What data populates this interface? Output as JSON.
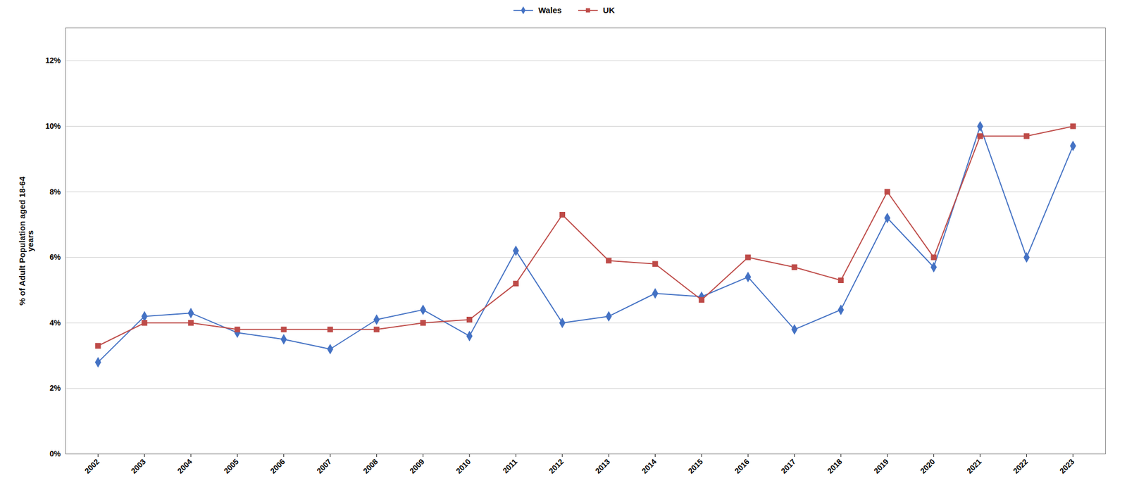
{
  "chart_data": {
    "type": "line",
    "x": [
      2002,
      2003,
      2004,
      2005,
      2006,
      2007,
      2008,
      2009,
      2010,
      2011,
      2012,
      2013,
      2014,
      2015,
      2016,
      2017,
      2018,
      2019,
      2020,
      2021,
      2022,
      2023
    ],
    "series": [
      {
        "name": "Wales",
        "color": "#4472C4",
        "marker": "diamond",
        "values": [
          0.028,
          0.042,
          0.043,
          0.037,
          0.035,
          0.032,
          0.041,
          0.044,
          0.036,
          0.062,
          0.04,
          0.042,
          0.049,
          0.048,
          0.054,
          0.038,
          0.044,
          0.072,
          0.057,
          0.1,
          0.06,
          0.094
        ]
      },
      {
        "name": "UK",
        "color": "#BE4B48",
        "marker": "square",
        "values": [
          0.033,
          0.04,
          0.04,
          0.038,
          0.038,
          0.038,
          0.038,
          0.04,
          0.041,
          0.052,
          0.073,
          0.059,
          0.058,
          0.047,
          0.06,
          0.057,
          0.053,
          0.08,
          0.06,
          0.097,
          0.097,
          0.1
        ]
      }
    ],
    "ylabel": "% of Adult Population aged 18-64\nyears",
    "xlim": [
      2001.3,
      2023.7
    ],
    "xticks": [
      2002,
      2003,
      2004,
      2005,
      2006,
      2007,
      2008,
      2009,
      2010,
      2011,
      2012,
      2013,
      2014,
      2015,
      2016,
      2017,
      2018,
      2019,
      2020,
      2021,
      2022,
      2023
    ],
    "ylim": [
      0,
      0.13
    ],
    "yticks": [
      {
        "value": 0.0,
        "label": "0%"
      },
      {
        "value": 0.02,
        "label": "2%"
      },
      {
        "value": 0.04,
        "label": "4%"
      },
      {
        "value": 0.06,
        "label": "6%"
      },
      {
        "value": 0.08,
        "label": "8%"
      },
      {
        "value": 0.1,
        "label": "10%"
      },
      {
        "value": 0.12,
        "label": "12%"
      }
    ],
    "grid": true,
    "legend": "top"
  }
}
